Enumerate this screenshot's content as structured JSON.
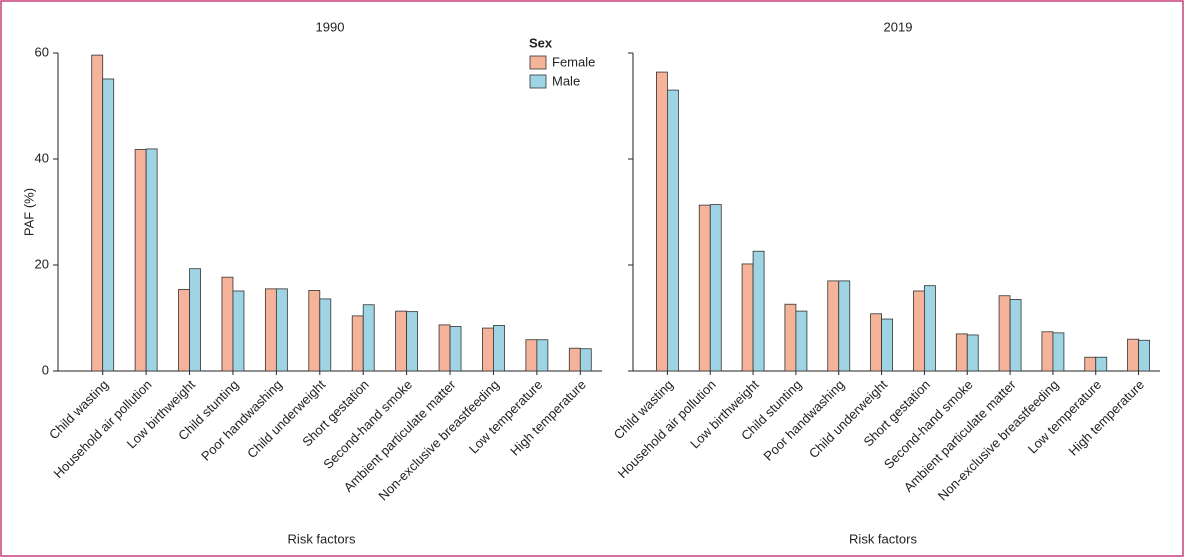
{
  "chart_data": [
    {
      "type": "bar",
      "title": "1990",
      "x_label": "Risk factors",
      "y_label": "PAF (%)",
      "categories": [
        "Child wasting",
        "Household air pollution",
        "Low birthweight",
        "Child stunting",
        "Poor handwashing",
        "Child underweight",
        "Short gestation",
        "Second-hand smoke",
        "Ambient particulate matter",
        "Non-exclusive breastfeeding",
        "Low temperature",
        "High temperature"
      ],
      "series": [
        {
          "name": "Female",
          "color": "#f5b49a",
          "values": [
            59.6,
            41.8,
            15.4,
            17.7,
            15.5,
            15.2,
            10.4,
            11.3,
            8.7,
            8.1,
            5.9,
            4.3
          ]
        },
        {
          "name": "Male",
          "color": "#9fd4e4",
          "values": [
            55.1,
            41.9,
            19.3,
            15.1,
            15.5,
            13.6,
            12.5,
            11.2,
            8.4,
            8.6,
            5.9,
            4.2
          ]
        }
      ],
      "ylim": [
        0,
        60
      ],
      "yticks": [
        0,
        20,
        40,
        60
      ],
      "ytick_labels": true,
      "legend": true,
      "legend_title": "Sex"
    },
    {
      "type": "bar",
      "title": "2019",
      "x_label": "Risk factors",
      "categories": [
        "Child wasting",
        "Household air pollution",
        "Low birthweight",
        "Child stunting",
        "Poor handwashing",
        "Child underweight",
        "Short gestation",
        "Second-hand smoke",
        "Ambient particulate matter",
        "Non-exclusive breastfeeding",
        "Low temperature",
        "High temperature"
      ],
      "series": [
        {
          "name": "Female",
          "color": "#f5b49a",
          "values": [
            56.4,
            31.3,
            20.2,
            12.6,
            17.0,
            10.8,
            15.1,
            7.0,
            14.2,
            7.4,
            2.6,
            6.0
          ]
        },
        {
          "name": "Male",
          "color": "#9fd4e4",
          "values": [
            53.0,
            31.4,
            22.6,
            11.3,
            17.0,
            9.8,
            16.1,
            6.8,
            13.5,
            7.2,
            2.6,
            5.8
          ]
        }
      ],
      "ylim": [
        0,
        60
      ],
      "yticks": [
        0,
        20,
        40,
        60
      ],
      "ytick_labels": false,
      "legend": false
    }
  ]
}
